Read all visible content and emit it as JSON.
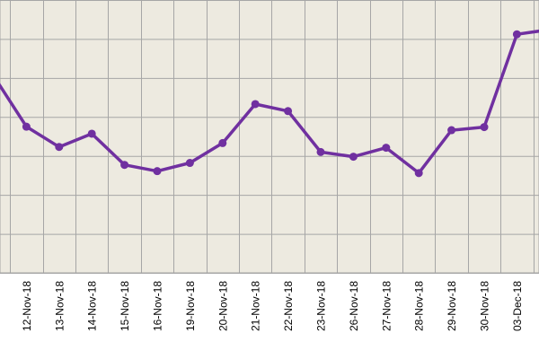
{
  "chart_data": {
    "type": "line",
    "title": "",
    "xlabel": "",
    "ylabel": "",
    "categories": [
      "",
      "12-Nov-18",
      "13-Nov-18",
      "14-Nov-18",
      "15-Nov-18",
      "16-Nov-18",
      "19-Nov-18",
      "20-Nov-18",
      "21-Nov-18",
      "22-Nov-18",
      "23-Nov-18",
      "26-Nov-18",
      "27-Nov-18",
      "28-Nov-18",
      "29-Nov-18",
      "30-Nov-18",
      "03-Dec-18",
      ""
    ],
    "ylim": [
      0,
      7
    ],
    "grid": true,
    "legend": "none",
    "series": [
      {
        "values": [
          5.05,
          3.75,
          3.23,
          3.57,
          2.77,
          2.61,
          2.82,
          3.33,
          4.33,
          4.15,
          3.1,
          2.98,
          3.21,
          2.56,
          3.66,
          3.74,
          6.12,
          6.24
        ]
      }
    ],
    "colors": {
      "plot_background": "#edeae0",
      "grid": "#a6a6a6",
      "line": "#7030a0",
      "label": "#000000"
    }
  }
}
